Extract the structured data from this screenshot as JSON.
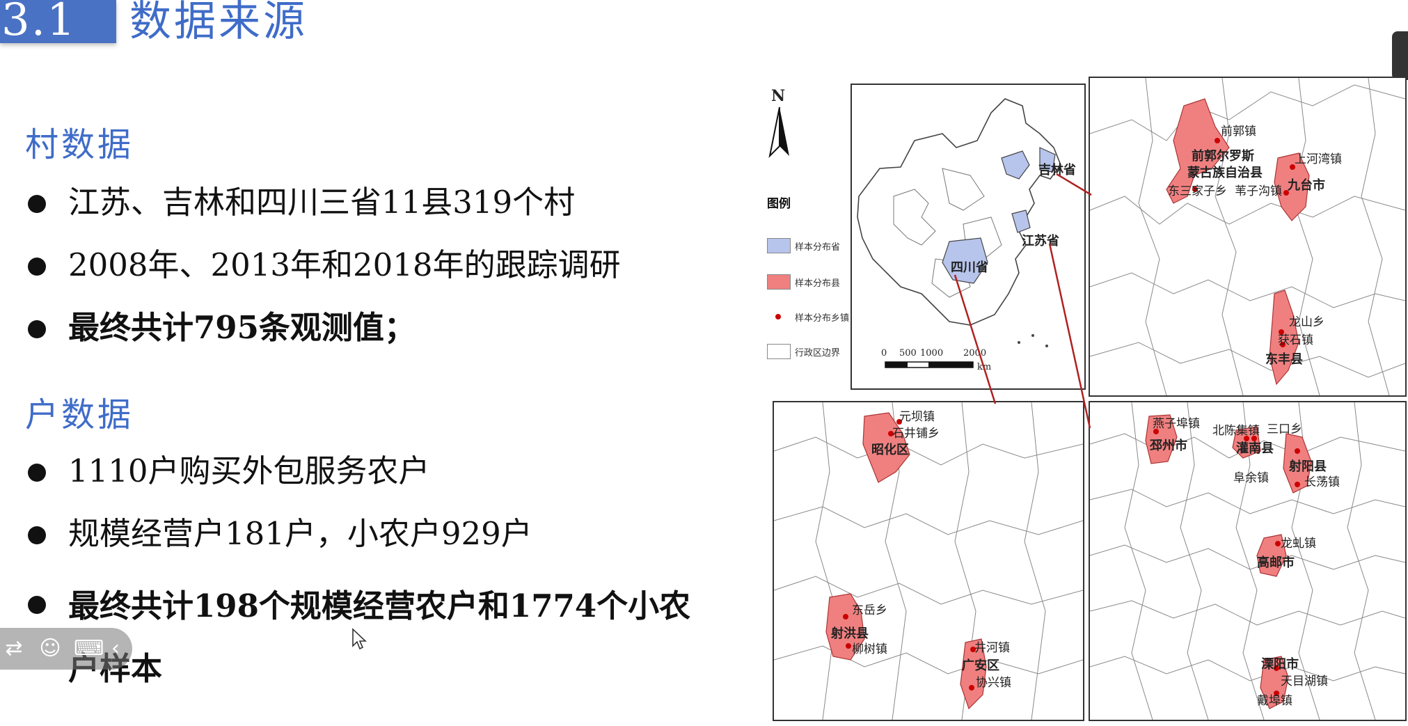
{
  "header": {
    "number": "3.1",
    "title": "数据来源"
  },
  "village": {
    "title": "村数据",
    "items": [
      "江苏、吉林和四川三省11县319个村",
      "2008年、2013年和2018年的跟踪调研",
      "最终共计795条观测值；"
    ]
  },
  "household": {
    "title": "户数据",
    "items": [
      "1110户购买外包服务农户",
      "规模经营户181户，小农户929户",
      "最终共计198个规模经营农户和1774个小农户样本"
    ]
  },
  "map": {
    "north": "N",
    "legend": {
      "title": "图例",
      "items": [
        "样本分布省",
        "样本分布县",
        "样本分布乡镇",
        "行政区边界"
      ]
    },
    "scale": {
      "ticks": [
        "0",
        "500",
        "1000",
        "2000"
      ],
      "unit": "km"
    },
    "china": {
      "provinces": [
        "吉林省",
        "江苏省",
        "四川省"
      ]
    },
    "jilin": [
      "前郭镇",
      "前郭尔罗斯",
      "蒙古族自治县",
      "东三家子乡",
      "苇子沟镇",
      "上河湾镇",
      "九台市",
      "龙山乡",
      "获石镇",
      "东丰县"
    ],
    "sichuan": [
      "元坝镇",
      "石井铺乡",
      "昭化区",
      "东岳乡",
      "射洪县",
      "柳树镇",
      "井河镇",
      "广安区",
      "协兴镇"
    ],
    "jiangsu": [
      "燕子埠镇",
      "邳州市",
      "北陈集镇",
      "三口乡",
      "灌南县",
      "射阳县",
      "阜余镇",
      "长荡镇",
      "龙虬镇",
      "高邮市",
      "溧阳市",
      "天目湖镇",
      "戴埠镇"
    ]
  },
  "colors": {
    "accent": "#3f6cc8",
    "county": "#f08080",
    "province": "#b7c4ec",
    "town": "#cc0000"
  }
}
